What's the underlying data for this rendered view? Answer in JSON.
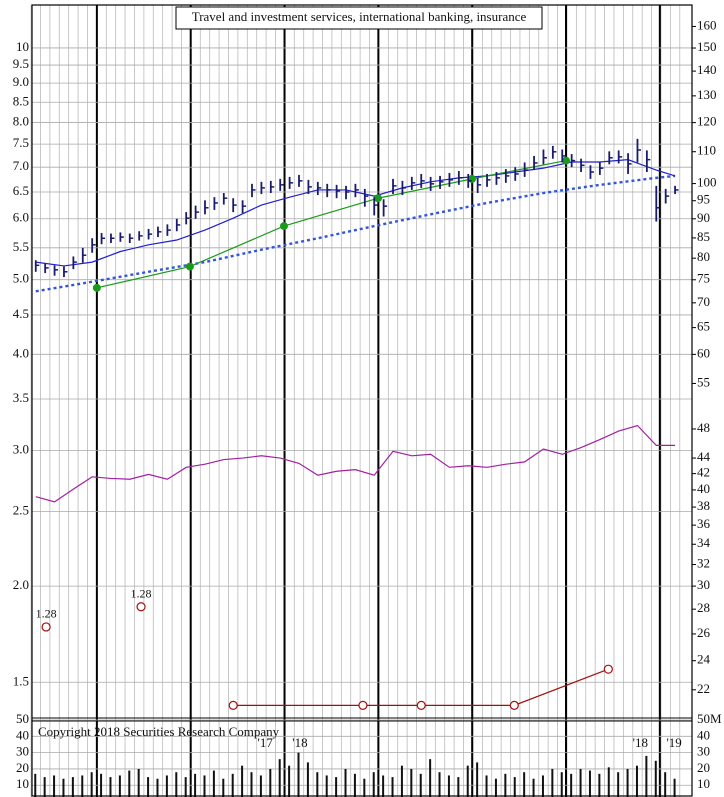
{
  "chart_data": {
    "type": "stock",
    "title": "Travel and investment services, international banking, insurance",
    "copyright": "Copyright 2018 Securities Research Company",
    "log_y": true,
    "grid": true,
    "xlim": [
      -0.4,
      69.8
    ],
    "ylim": [
      1.34,
      11.37
    ],
    "yticks": [
      10,
      9.5,
      {
        "value": 9,
        "label": "9.0"
      },
      8.5,
      {
        "value": 8,
        "label": "8.0"
      },
      7.5,
      {
        "value": 7,
        "label": "7.0"
      },
      6.5,
      {
        "value": 6,
        "label": "6.0"
      },
      5.5,
      {
        "value": 5,
        "label": "5.0"
      },
      4.5,
      {
        "value": 4,
        "label": "4.0"
      },
      3.5,
      {
        "value": 3,
        "label": "3.0"
      },
      2.5,
      {
        "value": 2,
        "label": "2.0"
      },
      1.5
    ],
    "y2lim": [
      20.1,
      170.6
    ],
    "y2ticks": [
      160,
      150,
      140,
      130,
      120,
      110,
      100,
      95,
      90,
      85,
      80,
      75,
      70,
      65,
      60,
      55,
      48,
      44,
      42,
      40,
      38,
      36,
      34,
      32,
      30,
      28,
      26,
      24,
      22
    ],
    "x_labels": [
      {
        "label": "'17",
        "x": 24.4
      },
      {
        "label": "'18",
        "x": 28.1
      },
      {
        "label": "'18",
        "x": 64.3
      },
      {
        "label": "'19",
        "x": 67.9
      }
    ],
    "price": {
      "color": "#1a1a6e",
      "close": [
        5.22,
        5.18,
        5.15,
        5.12,
        5.27,
        5.38,
        5.55,
        5.66,
        5.66,
        5.68,
        5.66,
        5.7,
        5.73,
        5.77,
        5.8,
        5.89,
        6.01,
        6.12,
        6.2,
        6.29,
        6.38,
        6.25,
        6.23,
        6.54,
        6.58,
        6.6,
        6.64,
        6.68,
        6.72,
        6.6,
        6.58,
        6.54,
        6.52,
        6.5,
        6.54,
        6.42,
        6.25,
        6.23,
        6.62,
        6.58,
        6.68,
        6.72,
        6.66,
        6.7,
        6.74,
        6.78,
        6.72,
        6.64,
        6.74,
        6.78,
        6.82,
        6.86,
        6.94,
        7.09,
        7.2,
        7.33,
        7.24,
        7.14,
        7.04,
        6.9,
        6.98,
        7.2,
        7.22,
        7.07,
        7.37,
        7.16,
        6.2,
        6.42,
        6.54
      ],
      "high": [
        5.3,
        5.25,
        5.22,
        5.2,
        5.36,
        5.5,
        5.66,
        5.75,
        5.74,
        5.76,
        5.74,
        5.78,
        5.82,
        5.86,
        5.9,
        6.0,
        6.12,
        6.24,
        6.34,
        6.4,
        6.48,
        6.38,
        6.34,
        6.66,
        6.7,
        6.72,
        6.76,
        6.8,
        6.84,
        6.74,
        6.7,
        6.66,
        6.64,
        6.62,
        6.66,
        6.56,
        6.4,
        6.36,
        6.76,
        6.72,
        6.8,
        6.86,
        6.8,
        6.82,
        6.88,
        6.92,
        6.86,
        6.78,
        6.86,
        6.9,
        6.96,
        7.0,
        7.1,
        7.24,
        7.38,
        7.46,
        7.38,
        7.28,
        7.18,
        7.04,
        7.12,
        7.34,
        7.36,
        7.3,
        7.62,
        7.36,
        6.62,
        6.56,
        6.62
      ],
      "low": [
        5.12,
        5.1,
        5.06,
        5.04,
        5.16,
        5.26,
        5.42,
        5.56,
        5.58,
        5.6,
        5.58,
        5.62,
        5.64,
        5.68,
        5.7,
        5.78,
        5.9,
        6.0,
        6.08,
        6.16,
        6.26,
        6.12,
        6.1,
        6.4,
        6.46,
        6.48,
        6.52,
        6.56,
        6.6,
        6.46,
        6.44,
        6.4,
        6.38,
        6.36,
        6.4,
        6.22,
        6.06,
        6.04,
        6.46,
        6.44,
        6.54,
        6.58,
        6.52,
        6.56,
        6.6,
        6.64,
        6.58,
        6.48,
        6.6,
        6.64,
        6.68,
        6.72,
        6.8,
        6.94,
        7.06,
        7.18,
        7.1,
        7.0,
        6.9,
        6.76,
        6.84,
        7.06,
        7.08,
        6.86,
        7.1,
        6.9,
        5.95,
        6.28,
        6.46
      ]
    },
    "ma_short": {
      "color": "#1f1fcc",
      "x": [
        0,
        3,
        6,
        9,
        12,
        15,
        18,
        21,
        24,
        27,
        30,
        33,
        36,
        39,
        42,
        45,
        48,
        51,
        54,
        57,
        60,
        63,
        66,
        68
      ],
      "values": [
        5.27,
        5.21,
        5.27,
        5.44,
        5.55,
        5.63,
        5.8,
        6.01,
        6.25,
        6.4,
        6.54,
        6.54,
        6.42,
        6.58,
        6.7,
        6.78,
        6.82,
        6.9,
        6.98,
        7.11,
        7.11,
        7.16,
        6.94,
        6.82
      ]
    },
    "ma_long": {
      "color": "#3355dd",
      "x": [
        0,
        6,
        12,
        18,
        24,
        30,
        36,
        42,
        48,
        54,
        60,
        66,
        68
      ],
      "values": [
        4.83,
        4.97,
        5.12,
        5.27,
        5.47,
        5.66,
        5.87,
        6.08,
        6.29,
        6.48,
        6.64,
        6.78,
        6.82
      ]
    },
    "earnings": {
      "color": "#1a9a1a",
      "x": [
        6.5,
        16.4,
        26.4,
        36.4,
        46.4,
        56.4
      ],
      "values": [
        4.88,
        5.2,
        5.87,
        6.38,
        6.76,
        7.14
      ]
    },
    "relative_strength": {
      "color": "#a020a0",
      "axis": "y2",
      "x": [
        0,
        2,
        4,
        6,
        8,
        10,
        12,
        14,
        16,
        18,
        20,
        22,
        24,
        26,
        28,
        30,
        32,
        34,
        36,
        38,
        40,
        42,
        44,
        46,
        48,
        50,
        52,
        54,
        56,
        58,
        60,
        62,
        64,
        66,
        68
      ],
      "values": [
        39.2,
        38.6,
        40.1,
        41.6,
        41.4,
        41.3,
        41.9,
        41.3,
        42.8,
        43.2,
        43.8,
        44.0,
        44.3,
        44.0,
        43.3,
        41.8,
        42.3,
        42.5,
        41.8,
        44.9,
        44.3,
        44.5,
        42.8,
        43.0,
        42.8,
        43.2,
        43.5,
        45.2,
        44.5,
        45.4,
        46.5,
        47.7,
        48.5,
        45.7,
        45.7
      ]
    },
    "dividends": {
      "color": "#a01010",
      "x": [
        21,
        34.8,
        41,
        50.9,
        60.9
      ],
      "values": [
        1.4,
        1.4,
        1.4,
        1.4,
        1.56
      ]
    },
    "annotations": [
      {
        "label": "1.28",
        "x": 1.1,
        "value": 1.77
      },
      {
        "label": "1.28",
        "x": 11.2,
        "value": 1.88
      }
    ],
    "volume": {
      "color": "#111",
      "ylim": [
        2.8,
        50
      ],
      "yticks": [
        50,
        40,
        30,
        20,
        10
      ],
      "y2ticks": [
        {
          "value": 50,
          "label": "50M"
        },
        40,
        30,
        20,
        10
      ],
      "values": [
        17,
        15,
        16,
        14,
        15,
        16,
        18,
        17,
        15,
        16,
        19,
        20,
        15,
        14,
        16,
        18,
        15,
        17,
        16,
        19,
        14,
        17,
        22,
        18,
        16,
        20,
        26,
        22,
        30,
        24,
        18,
        16,
        15,
        20,
        17,
        14,
        18,
        16,
        15,
        22,
        20,
        17,
        26,
        18,
        16,
        15,
        22,
        24,
        16,
        14,
        17,
        15,
        18,
        14,
        16,
        20,
        18,
        17,
        20,
        19,
        17,
        21,
        18,
        20,
        22,
        28,
        25,
        18,
        14
      ]
    }
  }
}
